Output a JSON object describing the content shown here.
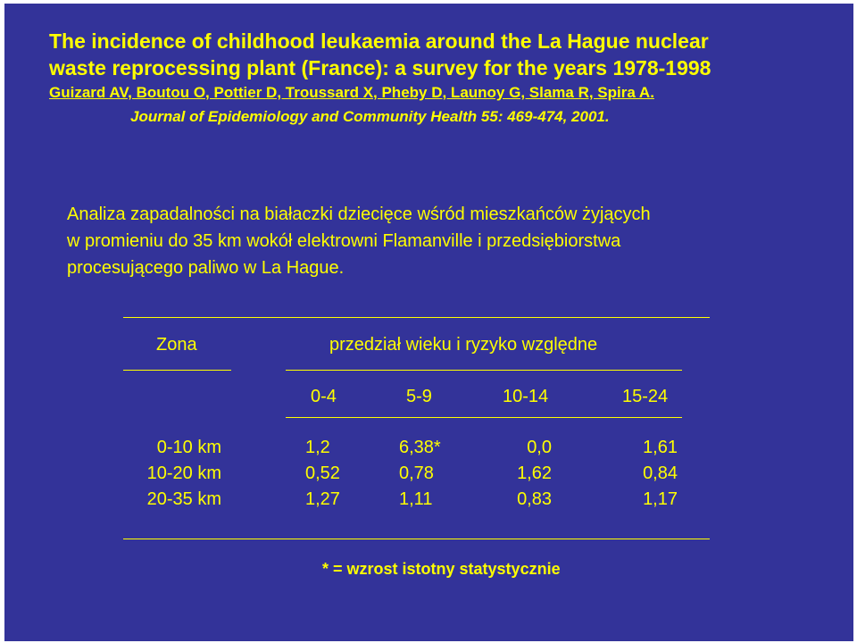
{
  "header": {
    "title_line1": "The incidence of childhood leukaemia around the La Hague nuclear",
    "title_line2": "waste reprocessing plant (France):  a survey for the years 1978-1998",
    "authors": "Guizard AV, Boutou O, Pottier D, Troussard X, Pheby D, Launoy G, Slama R, Spira A.",
    "journal": "Journal of Epidemiology and Community Health 55: 469-474, 2001."
  },
  "analysis": {
    "line1": "Analiza zapadalności na białaczki dziecięce wśród mieszkańców żyjących",
    "line2": "w promieniu do 35 km wokół elektrowni Flamanville i przedsiębiorstwa",
    "line3": "procesującego paliwo w La Hague."
  },
  "table": {
    "zone_header": "Zona",
    "group_header": "przedział wieku i ryzyko  względne",
    "age_groups": [
      "0-4",
      "5-9",
      "10-14",
      "15-24"
    ],
    "rows": [
      {
        "zone": "0-10 km",
        "values": [
          "1,2",
          "6,38*",
          "0,0",
          "1,61"
        ]
      },
      {
        "zone": "10-20 km",
        "values": [
          "0,52",
          "0,78",
          "1,62",
          "0,84"
        ]
      },
      {
        "zone": "20-35 km",
        "values": [
          "1,27",
          "1,11",
          "0,83",
          "1,17"
        ]
      }
    ]
  },
  "footnote": "* = wzrost istotny statystycznie",
  "colors": {
    "background": "#333399",
    "text": "#ffff00"
  }
}
